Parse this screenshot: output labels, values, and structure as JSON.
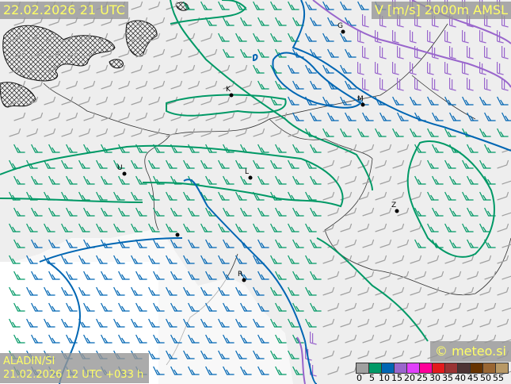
{
  "valid_time": "22.02.2026 21 UTC",
  "parameter": "V [m/s] 2000m AMSL",
  "model": "ALADIN/SI",
  "run": "21.02.2026 12 UTC +033 h",
  "copyright": "© meteo.si",
  "legend": {
    "colors": [
      "#a0a0a0",
      "#009966",
      "#0066b3",
      "#9966cc",
      "#e040fb",
      "#ff0099",
      "#e31a1c",
      "#993333",
      "#4d3333",
      "#663300",
      "#996633",
      "#b89966"
    ],
    "labels": [
      "0",
      "5",
      "10",
      "15",
      "20",
      "25",
      "30",
      "35",
      "40",
      "45",
      "50",
      "55"
    ]
  },
  "cities": [
    {
      "label": "G",
      "x_note": "north"
    },
    {
      "label": "K"
    },
    {
      "label": "M"
    },
    {
      "label": "U"
    },
    {
      "label": "L"
    },
    {
      "label": "Z"
    },
    {
      "label": "R"
    }
  ]
}
